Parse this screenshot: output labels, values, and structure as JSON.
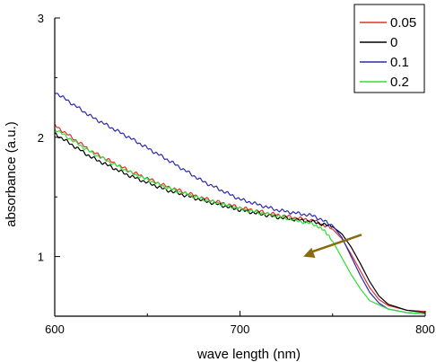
{
  "chart_data": {
    "type": "line",
    "xlabel": "wave length (nm)",
    "ylabel": "absorbance (a.u.)",
    "xlim": [
      600,
      800
    ],
    "ylim": [
      0.5,
      3
    ],
    "x_ticks": [
      600,
      700,
      800
    ],
    "y_ticks": [
      1,
      2,
      3
    ],
    "x_tick_labels": [
      "600",
      "700",
      "800"
    ],
    "y_tick_labels": [
      "1",
      "2",
      "3"
    ],
    "grid": false,
    "legend_position": "top-right",
    "annotation": {
      "type": "arrow",
      "from": [
        754,
        1.13
      ],
      "to": [
        741,
        1.03
      ],
      "color": "#8B6A0F"
    },
    "series": [
      {
        "name": "0.05",
        "color": "#e03030",
        "x": [
          600,
          620,
          640,
          660,
          680,
          700,
          720,
          740,
          750,
          755,
          760,
          765,
          770,
          775,
          780,
          790,
          800
        ],
        "y": [
          2.1,
          1.88,
          1.72,
          1.59,
          1.49,
          1.41,
          1.35,
          1.3,
          1.23,
          1.15,
          1.02,
          0.88,
          0.74,
          0.64,
          0.59,
          0.55,
          0.54
        ]
      },
      {
        "name": "0",
        "color": "#000000",
        "x": [
          600,
          620,
          640,
          660,
          680,
          700,
          720,
          740,
          750,
          755,
          760,
          765,
          770,
          775,
          780,
          790,
          800
        ],
        "y": [
          2.03,
          1.83,
          1.68,
          1.56,
          1.47,
          1.39,
          1.33,
          1.29,
          1.25,
          1.19,
          1.08,
          0.94,
          0.79,
          0.67,
          0.6,
          0.55,
          0.53
        ]
      },
      {
        "name": "0.1",
        "color": "#2a2ab0",
        "x": [
          600,
          620,
          640,
          660,
          680,
          700,
          720,
          740,
          750,
          755,
          760,
          765,
          770,
          775,
          780,
          790,
          800
        ],
        "y": [
          2.38,
          2.17,
          2.0,
          1.82,
          1.63,
          1.48,
          1.39,
          1.34,
          1.26,
          1.16,
          1.0,
          0.84,
          0.7,
          0.61,
          0.56,
          0.53,
          0.52
        ]
      },
      {
        "name": "0.2",
        "color": "#33dd33",
        "x": [
          600,
          620,
          640,
          660,
          680,
          700,
          720,
          740,
          745,
          750,
          755,
          760,
          765,
          770,
          780,
          790,
          800
        ],
        "y": [
          2.07,
          1.87,
          1.71,
          1.58,
          1.48,
          1.4,
          1.34,
          1.27,
          1.22,
          1.13,
          0.99,
          0.85,
          0.73,
          0.63,
          0.56,
          0.53,
          0.52
        ]
      }
    ]
  }
}
